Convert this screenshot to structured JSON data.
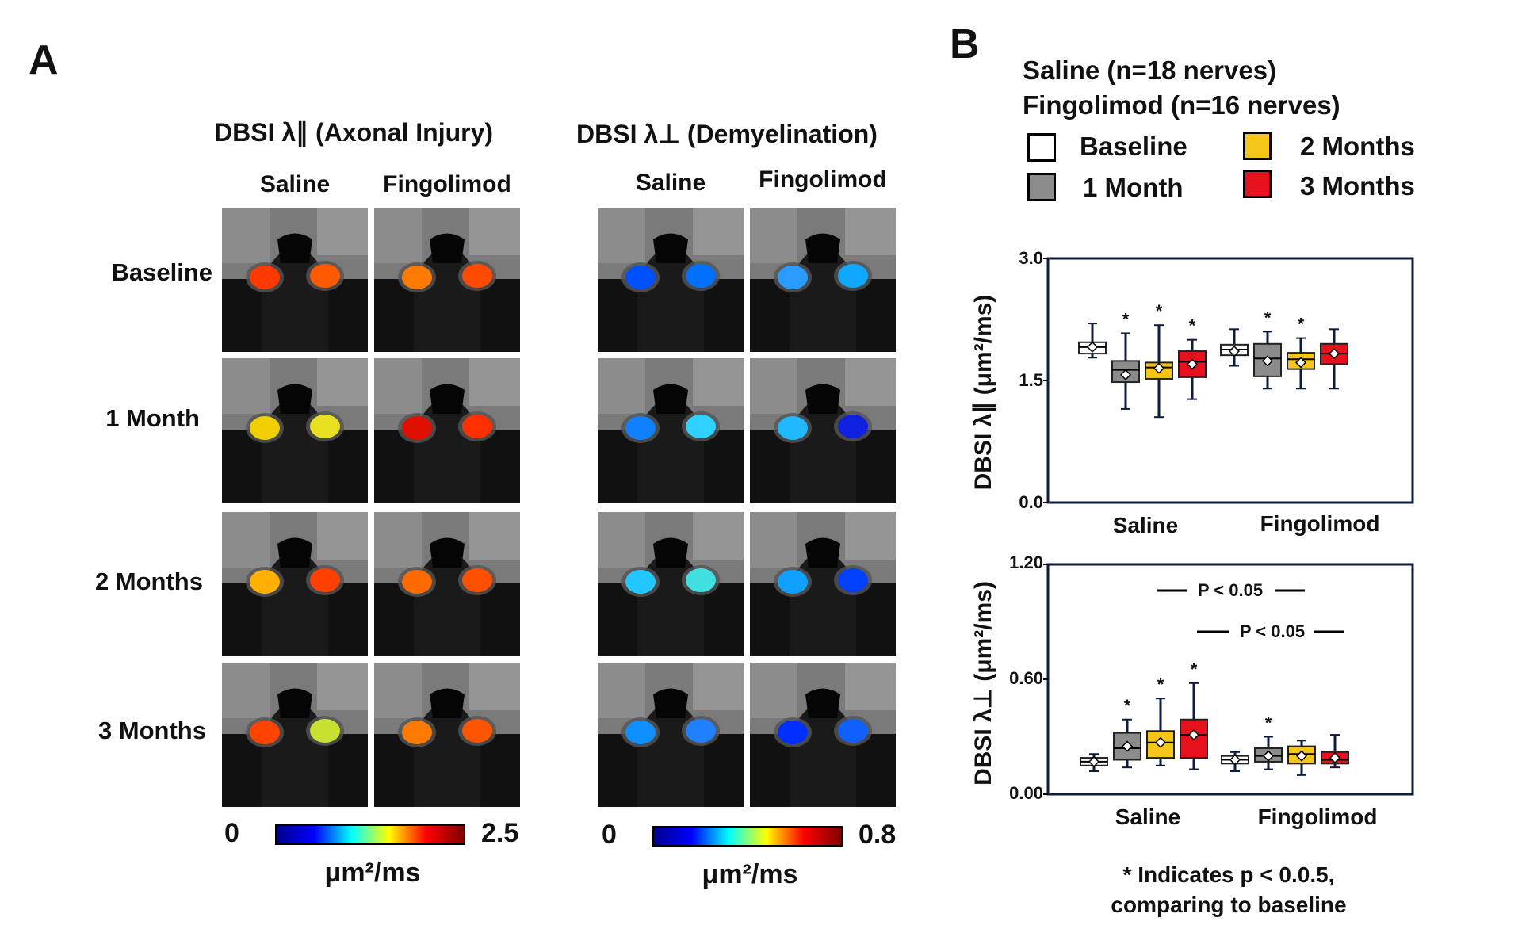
{
  "panel_a": {
    "label": "A",
    "axonal_title": "DBSI λ∥ (Axonal Injury)",
    "demyelination_title": "DBSI λ⊥ (Demyelination)",
    "col_saline": "Saline",
    "col_fingolimod": "Fingolimod",
    "rows": [
      "Baseline",
      "1 Month",
      "2 Months",
      "3 Months"
    ],
    "colorbar_axonal": {
      "min": "0",
      "max": "2.5",
      "unit": "μm²/ms"
    },
    "colorbar_demyelination": {
      "min": "0",
      "max": "0.8",
      "unit": "μm²/ms"
    }
  },
  "panel_b": {
    "label": "B",
    "legend": {
      "group1": "Saline (n=18 nerves)",
      "group2": "Fingolimod (n=16 nerves)",
      "items": [
        {
          "label": "Baseline",
          "color": "#ffffff"
        },
        {
          "label": "1 Month",
          "color": "#8c8c8c"
        },
        {
          "label": "2 Months",
          "color": "#f5c518"
        },
        {
          "label": "3 Months",
          "color": "#e8101c"
        }
      ]
    },
    "footnote_line1": "* Indicates p < 0.0.5,",
    "footnote_line2": "comparing to baseline"
  },
  "chart_data": [
    {
      "type": "box",
      "ylabel": "DBSI λ∥ (μm²/ms)",
      "ylim": [
        0.0,
        3.0
      ],
      "yticks": [
        "0.0",
        "1.5",
        "3.0"
      ],
      "categories": [
        "Saline",
        "Fingolimod"
      ],
      "series_names": [
        "Baseline",
        "1 Month",
        "2 Months",
        "3 Months"
      ],
      "colors": [
        "#ffffff",
        "#8c8c8c",
        "#f5c518",
        "#e8101c"
      ],
      "groups": [
        [
          {
            "min": 1.78,
            "q1": 1.83,
            "median": 1.91,
            "q3": 1.97,
            "max": 2.2,
            "mean": 1.91,
            "star": false
          },
          {
            "min": 1.15,
            "q1": 1.48,
            "median": 1.63,
            "q3": 1.74,
            "max": 2.08,
            "mean": 1.57,
            "star": true
          },
          {
            "min": 1.05,
            "q1": 1.52,
            "median": 1.66,
            "q3": 1.72,
            "max": 2.18,
            "mean": 1.65,
            "star": true
          },
          {
            "min": 1.27,
            "q1": 1.54,
            "median": 1.73,
            "q3": 1.86,
            "max": 2.0,
            "mean": 1.7,
            "star": true
          }
        ],
        [
          {
            "min": 1.68,
            "q1": 1.81,
            "median": 1.88,
            "q3": 1.94,
            "max": 2.13,
            "mean": 1.86,
            "star": false
          },
          {
            "min": 1.4,
            "q1": 1.55,
            "median": 1.77,
            "q3": 1.95,
            "max": 2.1,
            "mean": 1.74,
            "star": true
          },
          {
            "min": 1.4,
            "q1": 1.64,
            "median": 1.76,
            "q3": 1.84,
            "max": 2.02,
            "mean": 1.72,
            "star": true
          },
          {
            "min": 1.4,
            "q1": 1.7,
            "median": 1.83,
            "q3": 1.95,
            "max": 2.13,
            "mean": 1.83,
            "star": false
          }
        ]
      ]
    },
    {
      "type": "box",
      "ylabel": "DBSI λ⊥ (μm²/ms)",
      "ylim": [
        0.0,
        1.2
      ],
      "yticks": [
        "0.00",
        "0.60",
        "1.20"
      ],
      "categories": [
        "Saline",
        "Fingolimod"
      ],
      "series_names": [
        "Baseline",
        "1 Month",
        "2 Months",
        "3 Months"
      ],
      "colors": [
        "#ffffff",
        "#8c8c8c",
        "#f5c518",
        "#e8101c"
      ],
      "annotations": [
        "P < 0.05",
        "P < 0.05"
      ],
      "groups": [
        [
          {
            "min": 0.12,
            "q1": 0.15,
            "median": 0.17,
            "q3": 0.19,
            "max": 0.21,
            "mean": 0.17,
            "star": false
          },
          {
            "min": 0.14,
            "q1": 0.18,
            "median": 0.24,
            "q3": 0.32,
            "max": 0.39,
            "mean": 0.25,
            "star": true
          },
          {
            "min": 0.15,
            "q1": 0.19,
            "median": 0.27,
            "q3": 0.33,
            "max": 0.5,
            "mean": 0.27,
            "star": true
          },
          {
            "min": 0.13,
            "q1": 0.19,
            "median": 0.31,
            "q3": 0.39,
            "max": 0.58,
            "mean": 0.31,
            "star": true
          }
        ],
        [
          {
            "min": 0.12,
            "q1": 0.16,
            "median": 0.18,
            "q3": 0.2,
            "max": 0.22,
            "mean": 0.18,
            "star": false
          },
          {
            "min": 0.13,
            "q1": 0.17,
            "median": 0.2,
            "q3": 0.24,
            "max": 0.3,
            "mean": 0.2,
            "star": true
          },
          {
            "min": 0.1,
            "q1": 0.16,
            "median": 0.21,
            "q3": 0.25,
            "max": 0.28,
            "mean": 0.2,
            "star": false
          },
          {
            "min": 0.14,
            "q1": 0.16,
            "median": 0.18,
            "q3": 0.22,
            "max": 0.31,
            "mean": 0.19,
            "star": false
          }
        ]
      ]
    }
  ]
}
